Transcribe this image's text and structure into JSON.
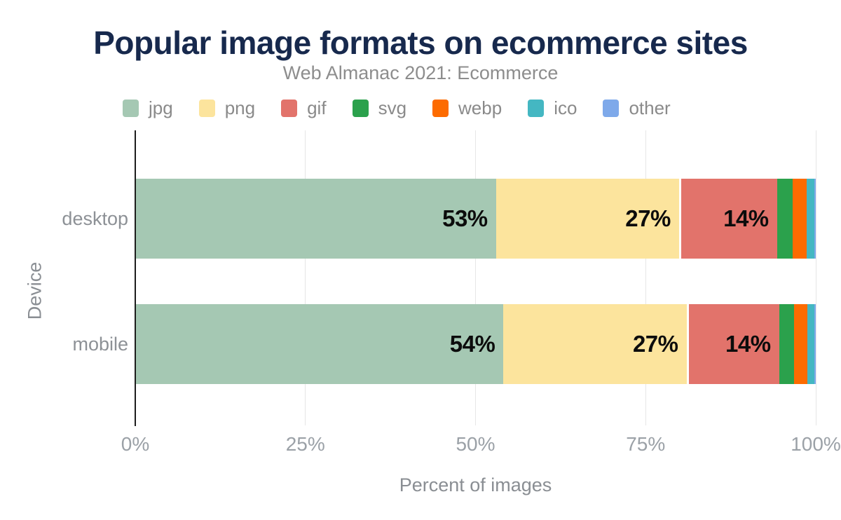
{
  "title": "Popular image formats on ecommerce sites",
  "subtitle": "Web Almanac 2021: Ecommerce",
  "colors": {
    "title": "#17294d",
    "subtitle": "#8d8d8d",
    "axis_line": "#1d1d1d",
    "gridline": "#e6e6e6",
    "tick_label": "#9ba1a7",
    "bar_value_label": "#0c0c0c"
  },
  "chart_data": {
    "type": "bar",
    "orientation": "horizontal-stacked",
    "title": "Popular image formats on ecommerce sites",
    "subtitle": "Web Almanac 2021: Ecommerce",
    "categories": [
      "desktop",
      "mobile"
    ],
    "series": [
      {
        "name": "jpg",
        "color": "#a5c8b3",
        "values": [
          52.9,
          54.0
        ],
        "labels": [
          "53%",
          "54%"
        ]
      },
      {
        "name": "png",
        "color": "#fce49d",
        "values": [
          26.9,
          26.9
        ],
        "labels": [
          "27%",
          "27%"
        ]
      },
      {
        "name": "gif",
        "color": "#e2736b",
        "values": [
          14.4,
          13.6
        ],
        "labels": [
          "14%",
          "14%"
        ],
        "divider": true
      },
      {
        "name": "svg",
        "color": "#2ba14c",
        "values": [
          2.3,
          2.2
        ],
        "labels": [
          "",
          ""
        ]
      },
      {
        "name": "webp",
        "color": "#fd6b00",
        "values": [
          2.1,
          2.0
        ],
        "labels": [
          "",
          ""
        ]
      },
      {
        "name": "ico",
        "color": "#44b7c2",
        "values": [
          1.1,
          1.0
        ],
        "labels": [
          "",
          ""
        ]
      },
      {
        "name": "other",
        "color": "#7ea9ea",
        "values": [
          0.2,
          0.2
        ],
        "labels": [
          "",
          ""
        ]
      }
    ],
    "xlabel": "Percent of images",
    "ylabel": "Device",
    "xlim": [
      0,
      100
    ],
    "x_ticks": [
      {
        "label": "0%",
        "value": 0
      },
      {
        "label": "25%",
        "value": 25
      },
      {
        "label": "50%",
        "value": 50
      },
      {
        "label": "75%",
        "value": 75
      },
      {
        "label": "100%",
        "value": 100
      }
    ],
    "grid": true,
    "legend_position": "top"
  }
}
